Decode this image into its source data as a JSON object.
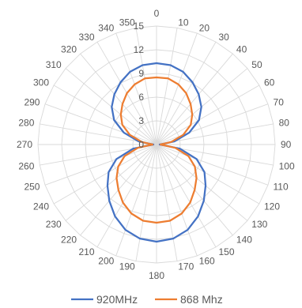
{
  "chart_data": {
    "type": "line",
    "projection": "polar",
    "categories": [
      "0",
      "10",
      "20",
      "30",
      "40",
      "50",
      "60",
      "70",
      "80",
      "90",
      "100",
      "110",
      "120",
      "130",
      "140",
      "150",
      "160",
      "170",
      "180",
      "190",
      "200",
      "210",
      "220",
      "230",
      "240",
      "250",
      "260",
      "270",
      "280",
      "290",
      "300",
      "310",
      "320",
      "330",
      "340",
      "350"
    ],
    "series": [
      {
        "name": "920MHz",
        "color": "#4472C4",
        "values": [
          10.3,
          10.2,
          9.8,
          9.1,
          8.3,
          7.4,
          6.2,
          4.4,
          2.3,
          0.4,
          3.0,
          5.4,
          7.0,
          8.1,
          9.3,
          10.5,
          11.5,
          12.1,
          12.3,
          12.1,
          11.5,
          10.5,
          9.3,
          8.1,
          7.0,
          5.4,
          3.0,
          0.4,
          2.3,
          4.4,
          6.2,
          7.4,
          8.3,
          9.1,
          9.8,
          10.2
        ]
      },
      {
        "name": "868 Mhz",
        "color": "#ED7D31",
        "values": [
          8.5,
          8.5,
          8.1,
          7.5,
          6.7,
          5.9,
          5.0,
          3.6,
          1.9,
          0.5,
          2.4,
          4.3,
          5.6,
          6.6,
          7.5,
          8.5,
          9.3,
          9.8,
          9.9,
          9.8,
          9.3,
          8.5,
          7.5,
          6.6,
          5.6,
          4.3,
          2.4,
          0.5,
          1.9,
          3.6,
          5.0,
          5.9,
          6.7,
          7.5,
          8.1,
          8.5
        ]
      }
    ],
    "rlim": [
      0,
      15
    ],
    "rticks": [
      0,
      3,
      6,
      9,
      12,
      15
    ],
    "grid": true,
    "legend": "bottom"
  }
}
